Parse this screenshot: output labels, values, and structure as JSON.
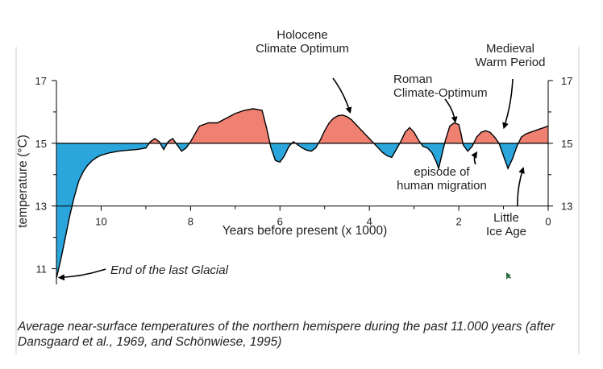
{
  "chart_data": {
    "type": "area",
    "xlabel": "Years before present (x 1000)",
    "ylabel": "temperature (°C)",
    "x_reversed": true,
    "xlim": [
      11,
      0
    ],
    "ylim": [
      10.5,
      17
    ],
    "baseline": 15,
    "x_ticks": [
      10,
      8,
      6,
      4,
      2,
      0
    ],
    "y_ticks": [
      11,
      13,
      15,
      17
    ],
    "y_ticks_right": [
      13,
      15,
      17
    ],
    "colors": {
      "above": "#f08070",
      "below": "#2aa6dc",
      "line": "#000000"
    },
    "series": [
      {
        "x": [
          11.0,
          10.9,
          10.8,
          10.7,
          10.6,
          10.5,
          10.4,
          10.3,
          10.2,
          10.1,
          10.0,
          9.8,
          9.6,
          9.4,
          9.2,
          9.0,
          8.9,
          8.8,
          8.7,
          8.6,
          8.5,
          8.4,
          8.3,
          8.2,
          8.1,
          8.0,
          7.9,
          7.8,
          7.6,
          7.4,
          7.2,
          7.0,
          6.8,
          6.6,
          6.4,
          6.3,
          6.2,
          6.1,
          6.0,
          5.9,
          5.8,
          5.7,
          5.6,
          5.5,
          5.4,
          5.3,
          5.2,
          5.1,
          5.0,
          4.9,
          4.8,
          4.7,
          4.6,
          4.5,
          4.4,
          4.3,
          4.2,
          4.1,
          4.0,
          3.9,
          3.8,
          3.7,
          3.6,
          3.5,
          3.4,
          3.3,
          3.2,
          3.1,
          3.0,
          2.9,
          2.8,
          2.7,
          2.6,
          2.5,
          2.45,
          2.4,
          2.3,
          2.2,
          2.1,
          2.0,
          1.95,
          1.9,
          1.8,
          1.7,
          1.6,
          1.5,
          1.4,
          1.3,
          1.2,
          1.1,
          1.0,
          0.9,
          0.8,
          0.7,
          0.6,
          0.5,
          0.4,
          0.3,
          0.2,
          0.1,
          0.0
        ],
        "y": [
          10.7,
          11.3,
          12.0,
          12.7,
          13.3,
          13.8,
          14.1,
          14.3,
          14.45,
          14.55,
          14.62,
          14.7,
          14.75,
          14.78,
          14.8,
          14.85,
          15.05,
          15.15,
          15.05,
          14.8,
          15.05,
          15.15,
          14.95,
          14.75,
          14.85,
          15.05,
          15.3,
          15.55,
          15.65,
          15.65,
          15.8,
          15.95,
          16.05,
          16.1,
          16.05,
          15.5,
          14.85,
          14.45,
          14.4,
          14.6,
          14.9,
          15.05,
          14.95,
          14.85,
          14.78,
          14.75,
          14.85,
          15.1,
          15.4,
          15.65,
          15.8,
          15.88,
          15.9,
          15.85,
          15.75,
          15.6,
          15.45,
          15.3,
          15.15,
          15.0,
          14.85,
          14.7,
          14.6,
          14.55,
          14.8,
          15.05,
          15.35,
          15.5,
          15.35,
          15.1,
          14.9,
          14.85,
          14.7,
          14.4,
          14.2,
          14.5,
          15.1,
          15.55,
          15.65,
          15.6,
          15.3,
          14.95,
          14.75,
          14.9,
          15.2,
          15.35,
          15.4,
          15.35,
          15.2,
          15.0,
          14.6,
          14.2,
          14.5,
          14.9,
          15.2,
          15.3,
          15.35,
          15.4,
          15.45,
          15.5,
          15.55
        ]
      }
    ],
    "annotations": [
      {
        "text": [
          "Holocene",
          "Climate Optimum"
        ],
        "point": [
          4.4,
          15.9
        ]
      },
      {
        "text": [
          "Medieval",
          "Warm Period"
        ],
        "point": [
          1.0,
          15.4
        ]
      },
      {
        "text": [
          "Roman",
          "Climate-Optimum"
        ],
        "point": [
          2.05,
          15.6
        ]
      },
      {
        "text": [
          "episode of",
          "human migration"
        ],
        "point": [
          1.6,
          14.8
        ]
      },
      {
        "text": [
          "Little",
          "Ice Age"
        ],
        "point": [
          0.55,
          14.3
        ]
      },
      {
        "text": [
          "End of the last Glacial"
        ],
        "point": [
          11.0,
          10.7
        ]
      }
    ],
    "caption": "Average near-surface temperatures of the northern hemispere during the past 11.000 years (after Dansgaard et al., 1969, and Schönwiese, 1995)"
  }
}
